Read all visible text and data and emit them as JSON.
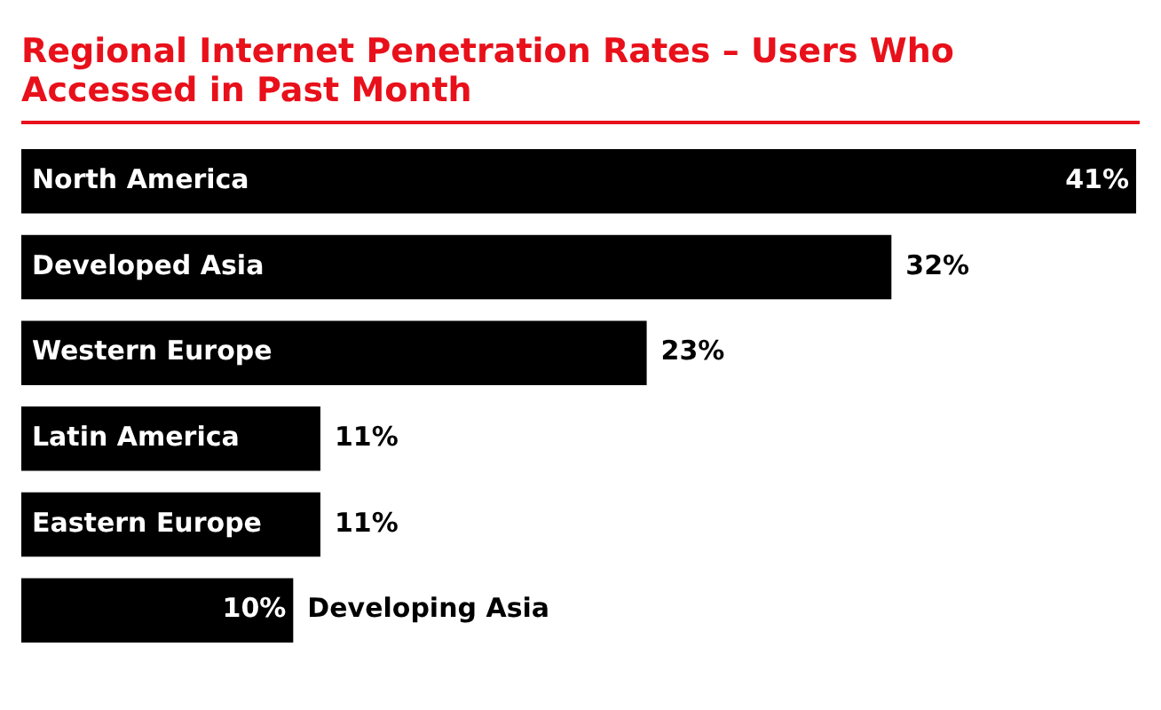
{
  "chart_data": {
    "type": "bar",
    "orientation": "horizontal",
    "title": "Regional Internet Penetration Rates – Users Who Accessed in Past Month",
    "categories": [
      "North America",
      "Developed Asia",
      "Western Europe",
      "Latin America",
      "Eastern Europe",
      "Developing Asia"
    ],
    "values": [
      41,
      32,
      23,
      11,
      11,
      10
    ],
    "value_labels": [
      "41%",
      "32%",
      "23%",
      "11%",
      "11%",
      "10%"
    ],
    "color": "#000000"
  }
}
